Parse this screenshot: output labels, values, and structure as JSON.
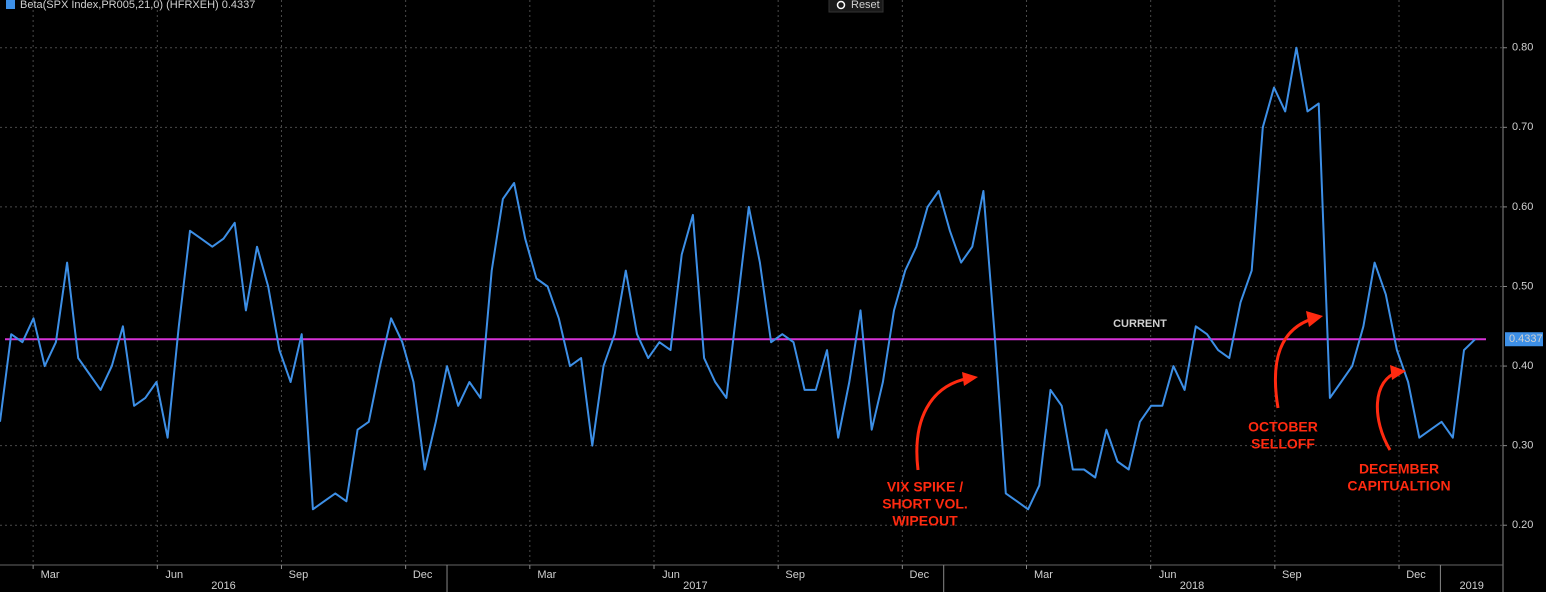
{
  "chart_data": {
    "type": "line",
    "legend": "Beta(SPX Index,PR005,21,0) (HFRXEH) 0.4337",
    "button": "Reset",
    "grid": true,
    "xlim": [
      2016.1,
      2019.12
    ],
    "ylim": [
      0.15,
      0.86
    ],
    "yticks": [
      {
        "value": 0.2,
        "label": "0.20"
      },
      {
        "value": 0.3,
        "label": "0.30"
      },
      {
        "value": 0.4,
        "label": "0.40"
      },
      {
        "value": 0.5,
        "label": "0.50"
      },
      {
        "value": 0.6,
        "label": "0.60"
      },
      {
        "value": 0.7,
        "label": "0.70"
      },
      {
        "value": 0.8,
        "label": "0.80"
      }
    ],
    "xticks": [
      {
        "value": 2016.1667,
        "label": "Mar"
      },
      {
        "value": 2016.4167,
        "label": "Jun"
      },
      {
        "value": 2016.6667,
        "label": "Sep"
      },
      {
        "value": 2016.9167,
        "label": "Dec"
      },
      {
        "value": 2017.1667,
        "label": "Mar"
      },
      {
        "value": 2017.4167,
        "label": "Jun"
      },
      {
        "value": 2017.6667,
        "label": "Sep"
      },
      {
        "value": 2017.9167,
        "label": "Dec"
      },
      {
        "value": 2018.1667,
        "label": "Mar"
      },
      {
        "value": 2018.4167,
        "label": "Jun"
      },
      {
        "value": 2018.6667,
        "label": "Sep"
      },
      {
        "value": 2018.9167,
        "label": "Dec"
      }
    ],
    "years": [
      2016,
      2017,
      2018,
      2019
    ],
    "current": {
      "label": "CURRENT",
      "value": 0.4337,
      "color": "#d633d6"
    },
    "annotations": [
      {
        "lines": [
          "VIX SPIKE /",
          "SHORT VOL.",
          "WIPEOUT"
        ]
      },
      {
        "lines": [
          "OCTOBER",
          "SELLOFF"
        ]
      },
      {
        "lines": [
          "DECEMBER",
          "CAPITUALTION"
        ]
      }
    ],
    "series": [
      {
        "name": "Beta(SPX Index,PR005,21,0) (HFRXEH)",
        "color": "#3d8fe6",
        "x": [
          2016.1,
          2016.1225,
          2016.145,
          2016.1675,
          2016.19,
          2016.2125,
          2016.235,
          2016.2575,
          2016.28,
          2016.3025,
          2016.325,
          2016.3475,
          2016.37,
          2016.3925,
          2016.415,
          2016.4375,
          2016.46,
          2016.4825,
          2016.505,
          2016.5275,
          2016.55,
          2016.5725,
          2016.595,
          2016.6175,
          2016.64,
          2016.6625,
          2016.685,
          2016.7075,
          2016.73,
          2016.7525,
          2016.775,
          2016.7975,
          2016.82,
          2016.8425,
          2016.865,
          2016.8875,
          2016.91,
          2016.9325,
          2016.955,
          2016.9775,
          2017.0,
          2017.0225,
          2017.045,
          2017.0675,
          2017.09,
          2017.1125,
          2017.135,
          2017.1575,
          2017.18,
          2017.2025,
          2017.225,
          2017.2475,
          2017.27,
          2017.2925,
          2017.315,
          2017.3375,
          2017.36,
          2017.3825,
          2017.405,
          2017.4275,
          2017.45,
          2017.4725,
          2017.495,
          2017.5175,
          2017.54,
          2017.5625,
          2017.585,
          2017.6075,
          2017.63,
          2017.6525,
          2017.675,
          2017.6975,
          2017.72,
          2017.7425,
          2017.765,
          2017.7875,
          2017.81,
          2017.8325,
          2017.855,
          2017.8775,
          2017.9,
          2017.9225,
          2017.945,
          2017.9675,
          2017.99,
          2018.0125,
          2018.035,
          2018.0575,
          2018.08,
          2018.1025,
          2018.125,
          2018.1475,
          2018.17,
          2018.1925,
          2018.215,
          2018.2375,
          2018.26,
          2018.2825,
          2018.305,
          2018.3275,
          2018.35,
          2018.3725,
          2018.395,
          2018.4175,
          2018.44,
          2018.4625,
          2018.485,
          2018.5075,
          2018.53,
          2018.5525,
          2018.575,
          2018.5975,
          2018.62,
          2018.6425,
          2018.665,
          2018.6875,
          2018.71,
          2018.7325,
          2018.755,
          2018.7775,
          2018.8,
          2018.8225,
          2018.845,
          2018.8675,
          2018.89,
          2018.9125,
          2018.935,
          2018.9575,
          2018.98,
          2019.0025,
          2019.025,
          2019.0475,
          2019.07
        ],
        "values": [
          0.33,
          0.44,
          0.43,
          0.46,
          0.4,
          0.43,
          0.53,
          0.41,
          0.39,
          0.37,
          0.4,
          0.45,
          0.35,
          0.36,
          0.38,
          0.31,
          0.45,
          0.57,
          0.56,
          0.55,
          0.56,
          0.58,
          0.47,
          0.55,
          0.5,
          0.42,
          0.38,
          0.44,
          0.22,
          0.23,
          0.24,
          0.23,
          0.32,
          0.33,
          0.4,
          0.46,
          0.43,
          0.38,
          0.27,
          0.33,
          0.4,
          0.35,
          0.38,
          0.36,
          0.52,
          0.61,
          0.63,
          0.56,
          0.51,
          0.5,
          0.46,
          0.4,
          0.41,
          0.3,
          0.4,
          0.44,
          0.52,
          0.44,
          0.41,
          0.43,
          0.42,
          0.54,
          0.59,
          0.41,
          0.38,
          0.36,
          0.48,
          0.6,
          0.53,
          0.43,
          0.44,
          0.43,
          0.37,
          0.37,
          0.42,
          0.31,
          0.38,
          0.47,
          0.32,
          0.38,
          0.47,
          0.52,
          0.55,
          0.6,
          0.62,
          0.57,
          0.53,
          0.55,
          0.62,
          0.44,
          0.24,
          0.23,
          0.22,
          0.25,
          0.37,
          0.35,
          0.27,
          0.27,
          0.26,
          0.32,
          0.28,
          0.27,
          0.33,
          0.35,
          0.35,
          0.4,
          0.37,
          0.45,
          0.44,
          0.42,
          0.41,
          0.48,
          0.52,
          0.7,
          0.75,
          0.72,
          0.8,
          0.72,
          0.73,
          0.36,
          0.38,
          0.4,
          0.45,
          0.53,
          0.49,
          0.42,
          0.38,
          0.31,
          0.32,
          0.33,
          0.31,
          0.42,
          0.4337
        ]
      }
    ]
  }
}
